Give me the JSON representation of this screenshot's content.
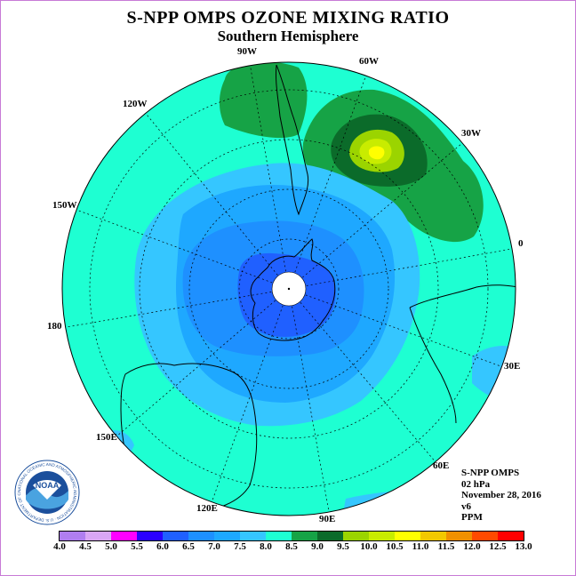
{
  "header": {
    "title": "S-NPP OMPS OZONE MIXING RATIO",
    "subtitle": "Southern Hemisphere"
  },
  "longitude_labels": [
    "90W",
    "60W",
    "30W",
    "0",
    "30E",
    "60E",
    "90E",
    "120E",
    "150E",
    "180",
    "150W",
    "120W"
  ],
  "info": {
    "instrument": "S-NPP OMPS",
    "level": "02 hPa",
    "date": "November 28, 2016",
    "version": "v6",
    "units": "PPM"
  },
  "colorbar": {
    "levels": [
      "4.0",
      "4.5",
      "5.0",
      "5.5",
      "6.0",
      "6.5",
      "7.0",
      "7.5",
      "8.0",
      "8.5",
      "9.0",
      "9.5",
      "10.0",
      "10.5",
      "11.0",
      "11.5",
      "12.0",
      "12.5",
      "13.0"
    ],
    "colors": [
      "#b07ef0",
      "#d9a6f5",
      "#ff00ff",
      "#2a00ff",
      "#2060ff",
      "#1e90ff",
      "#1ea8ff",
      "#35c6ff",
      "#1effd2",
      "#16a346",
      "#0b6b2a",
      "#9bd400",
      "#c8ec00",
      "#ffff00",
      "#f2c800",
      "#f09000",
      "#ff4a00",
      "#ff0000",
      "#8b5a2b"
    ]
  },
  "logo": {
    "text": "NOAA",
    "ring_text": "NATIONAL OCEANIC AND ATMOSPHERIC ADMINISTRATION · U.S. DEPARTMENT OF COMMERCE"
  },
  "map_colors": {
    "band_8_0": "#1effd2",
    "band_7_5": "#35c6ff",
    "band_7_0": "#1ea8ff",
    "band_6_5": "#1e90ff",
    "band_6_0": "#2060ff",
    "band_8_5": "#16a346",
    "band_9_0": "#0b6b2a",
    "band_9_5": "#9bd400",
    "band_10_0": "#c8ec00",
    "band_10_5": "#ffff00"
  }
}
